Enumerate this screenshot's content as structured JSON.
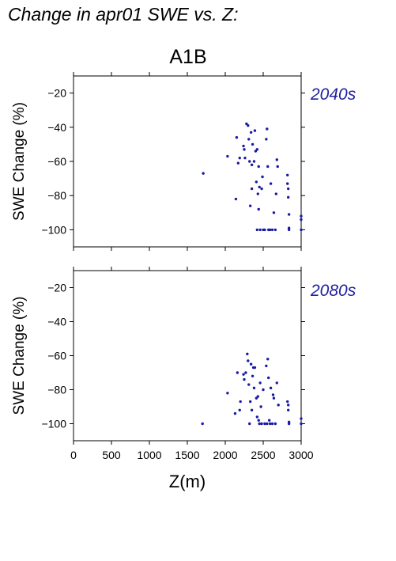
{
  "figure": {
    "title": "Change in apr01 SWE vs. Z:",
    "scenario_title": "A1B",
    "xlabel": "Z(m)",
    "point_color": "#1a1aa6",
    "period_color": "#2020a0"
  },
  "chart_data": [
    {
      "type": "scatter",
      "label": "2040s",
      "ylabel": "SWE Change (%)",
      "xlim": [
        0,
        3000
      ],
      "ylim": [
        -110,
        -10
      ],
      "xticks": [
        0,
        500,
        1000,
        1500,
        2000,
        2500,
        3000
      ],
      "yticks": [
        -20,
        -40,
        -60,
        -80,
        -100
      ],
      "points": [
        [
          1710,
          -67
        ],
        [
          2030,
          -57
        ],
        [
          2140,
          -82
        ],
        [
          2150,
          -46
        ],
        [
          2170,
          -61
        ],
        [
          2190,
          -58
        ],
        [
          2240,
          -51
        ],
        [
          2250,
          -53
        ],
        [
          2260,
          -58
        ],
        [
          2280,
          -38
        ],
        [
          2300,
          -39
        ],
        [
          2310,
          -47
        ],
        [
          2320,
          -60
        ],
        [
          2330,
          -86
        ],
        [
          2340,
          -43
        ],
        [
          2350,
          -62
        ],
        [
          2350,
          -76
        ],
        [
          2360,
          -50
        ],
        [
          2380,
          -60
        ],
        [
          2390,
          -42
        ],
        [
          2400,
          -54
        ],
        [
          2410,
          -72
        ],
        [
          2420,
          -53
        ],
        [
          2420,
          -100
        ],
        [
          2430,
          -79
        ],
        [
          2440,
          -88
        ],
        [
          2440,
          -63
        ],
        [
          2450,
          -75
        ],
        [
          2460,
          -100
        ],
        [
          2480,
          -76
        ],
        [
          2490,
          -69
        ],
        [
          2500,
          -100
        ],
        [
          2520,
          -100
        ],
        [
          2540,
          -47
        ],
        [
          2550,
          -41
        ],
        [
          2560,
          -63
        ],
        [
          2570,
          -100
        ],
        [
          2590,
          -100
        ],
        [
          2600,
          -73
        ],
        [
          2620,
          -100
        ],
        [
          2640,
          -90
        ],
        [
          2660,
          -100
        ],
        [
          2670,
          -79
        ],
        [
          2680,
          -59
        ],
        [
          2690,
          -63
        ],
        [
          2820,
          -68
        ],
        [
          2820,
          -73
        ],
        [
          2830,
          -76
        ],
        [
          2830,
          -81
        ],
        [
          2840,
          -91
        ],
        [
          2840,
          -99
        ],
        [
          2840,
          -100
        ],
        [
          3000,
          -92
        ],
        [
          3000,
          -94
        ],
        [
          3000,
          -100
        ]
      ]
    },
    {
      "type": "scatter",
      "label": "2080s",
      "ylabel": "SWE Change (%)",
      "xlim": [
        0,
        3000
      ],
      "ylim": [
        -110,
        -10
      ],
      "xticks": [
        0,
        500,
        1000,
        1500,
        2000,
        2500,
        3000
      ],
      "yticks": [
        -20,
        -40,
        -60,
        -80,
        -100
      ],
      "points": [
        [
          1700,
          -100
        ],
        [
          2030,
          -82
        ],
        [
          2130,
          -94
        ],
        [
          2160,
          -70
        ],
        [
          2190,
          -92
        ],
        [
          2200,
          -87
        ],
        [
          2240,
          -71
        ],
        [
          2250,
          -74
        ],
        [
          2270,
          -70
        ],
        [
          2290,
          -59
        ],
        [
          2300,
          -63
        ],
        [
          2310,
          -77
        ],
        [
          2320,
          -100
        ],
        [
          2330,
          -87
        ],
        [
          2340,
          -65
        ],
        [
          2350,
          -92
        ],
        [
          2360,
          -72
        ],
        [
          2370,
          -67
        ],
        [
          2380,
          -79
        ],
        [
          2390,
          -67
        ],
        [
          2410,
          -85
        ],
        [
          2420,
          -96
        ],
        [
          2430,
          -84
        ],
        [
          2440,
          -98
        ],
        [
          2450,
          -100
        ],
        [
          2460,
          -76
        ],
        [
          2470,
          -90
        ],
        [
          2480,
          -100
        ],
        [
          2500,
          -80
        ],
        [
          2520,
          -100
        ],
        [
          2540,
          -66
        ],
        [
          2550,
          -100
        ],
        [
          2560,
          -62
        ],
        [
          2570,
          -73
        ],
        [
          2580,
          -98
        ],
        [
          2590,
          -100
        ],
        [
          2600,
          -79
        ],
        [
          2620,
          -100
        ],
        [
          2630,
          -83
        ],
        [
          2640,
          -85
        ],
        [
          2660,
          -100
        ],
        [
          2680,
          -76
        ],
        [
          2700,
          -89
        ],
        [
          2820,
          -87
        ],
        [
          2830,
          -89
        ],
        [
          2830,
          -92
        ],
        [
          2840,
          -99
        ],
        [
          2840,
          -100
        ],
        [
          3000,
          -97
        ],
        [
          3000,
          -100
        ]
      ]
    }
  ]
}
